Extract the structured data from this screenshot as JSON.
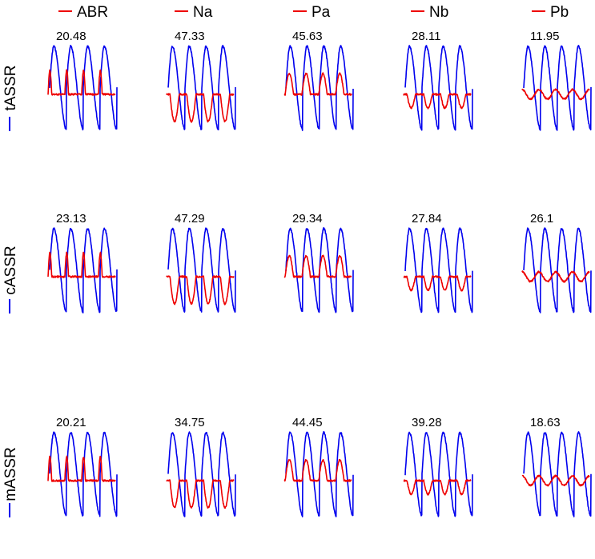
{
  "chart_data": {
    "type": "line",
    "colors": {
      "stimulus": "#0000ee",
      "response": "#ee0000"
    },
    "legend": {
      "placement": "top",
      "entries": [
        {
          "name": "ABR"
        },
        {
          "name": "Na"
        },
        {
          "name": "Pa"
        },
        {
          "name": "Nb"
        },
        {
          "name": "Pb"
        }
      ]
    },
    "rows": [
      {
        "name": "tASSR",
        "values": [
          "20.48",
          "47.33",
          "45.63",
          "28.11",
          "11.95"
        ]
      },
      {
        "name": "cASSR",
        "values": [
          "23.13",
          "47.29",
          "29.34",
          "27.84",
          "26.1"
        ]
      },
      {
        "name": "mASSR",
        "values": [
          "20.21",
          "34.75",
          "44.45",
          "39.28",
          "18.63"
        ]
      }
    ],
    "grid": false,
    "axes_visible": false
  }
}
